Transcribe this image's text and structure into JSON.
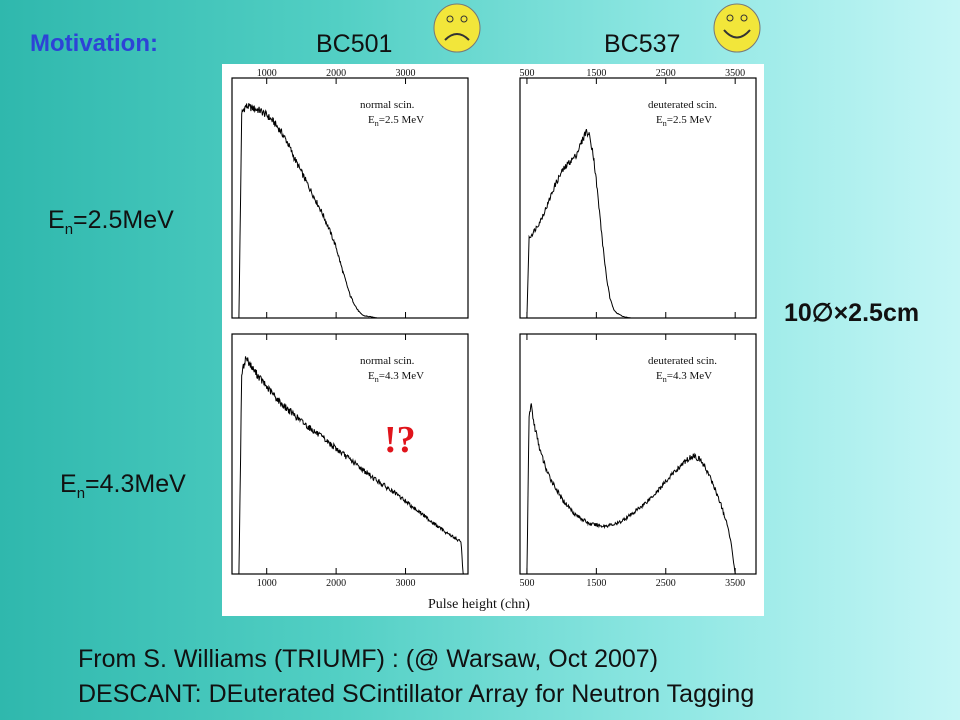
{
  "slide": {
    "title": "Motivation:",
    "columns": [
      "BC501",
      "BC537"
    ],
    "rows": [
      {
        "E": "E",
        "sub": "n",
        "rest": "=2.5MeV"
      },
      {
        "E": "E",
        "sub": "n",
        "rest": "=4.3MeV"
      }
    ],
    "dimensions": "10∅×2.5cm",
    "annotation": "!?",
    "credit_line1": "From S. Williams (TRIUMF) : (@ Warsaw, Oct 2007)",
    "credit_line2": "DESCANT: DEuterated SCintillator Array for Neutron Tagging",
    "icons": [
      "sad-face-icon",
      "happy-face-icon"
    ],
    "colors": {
      "title": "#2d43d6",
      "annotation": "#e0141b",
      "face": "#f2e63a"
    }
  },
  "chart_data": [
    {
      "type": "line",
      "legend": [
        "normal scin.",
        "E",
        "n",
        "=2.5 MeV"
      ],
      "xlabel": "Pulse height (chn)",
      "xlim": [
        500,
        3900
      ],
      "x_ticks": [
        1000,
        2000,
        3000
      ],
      "series": [
        {
          "x": [
            600,
            640,
            700,
            800,
            900,
            1000,
            1100,
            1200,
            1300,
            1400,
            1500,
            1600,
            1700,
            1800,
            1900,
            2000,
            2100,
            2200,
            2300,
            2350,
            2400,
            2500,
            2600,
            3000,
            3900
          ],
          "y": [
            0,
            0.9,
            0.93,
            0.92,
            0.91,
            0.89,
            0.86,
            0.82,
            0.77,
            0.7,
            0.64,
            0.58,
            0.52,
            0.46,
            0.39,
            0.31,
            0.2,
            0.1,
            0.04,
            0.02,
            0.01,
            0.005,
            0,
            0,
            0
          ]
        }
      ]
    },
    {
      "type": "line",
      "legend": [
        "deuterated scin.",
        "E",
        "n",
        "=2.5 MeV"
      ],
      "xlim": [
        400,
        3800
      ],
      "x_ticks": [
        500,
        1500,
        2500,
        3500
      ],
      "series": [
        {
          "x": [
            500,
            530,
            600,
            700,
            800,
            900,
            1000,
            1100,
            1200,
            1300,
            1350,
            1400,
            1450,
            1500,
            1550,
            1600,
            1650,
            1700,
            1750,
            1800,
            1900,
            2000,
            3800
          ],
          "y": [
            0,
            0.35,
            0.38,
            0.43,
            0.5,
            0.58,
            0.64,
            0.68,
            0.71,
            0.78,
            0.82,
            0.8,
            0.73,
            0.6,
            0.45,
            0.3,
            0.17,
            0.08,
            0.04,
            0.02,
            0.005,
            0,
            0
          ]
        }
      ]
    },
    {
      "type": "line",
      "legend": [
        "normal scin.",
        "E",
        "n",
        "=4.3 MeV"
      ],
      "xlim": [
        500,
        3900
      ],
      "x_ticks": [
        1000,
        2000,
        3000
      ],
      "series": [
        {
          "x": [
            600,
            640,
            700,
            800,
            1000,
            1200,
            1500,
            2000,
            2500,
            3000,
            3500,
            3800,
            3830,
            3900
          ],
          "y": [
            0,
            0.88,
            0.95,
            0.9,
            0.82,
            0.75,
            0.67,
            0.55,
            0.43,
            0.32,
            0.2,
            0.14,
            0,
            0
          ]
        }
      ]
    },
    {
      "type": "line",
      "legend": [
        "deuterated scin.",
        "E",
        "n",
        "=4.3 MeV"
      ],
      "xlim": [
        400,
        3800
      ],
      "x_ticks": [
        500,
        1500,
        2500,
        3500
      ],
      "series": [
        {
          "x": [
            500,
            530,
            560,
            600,
            700,
            800,
            1000,
            1200,
            1400,
            1600,
            1800,
            2000,
            2200,
            2400,
            2600,
            2800,
            2900,
            3000,
            3100,
            3200,
            3300,
            3400,
            3450,
            3500,
            3800
          ],
          "y": [
            0,
            0.68,
            0.75,
            0.66,
            0.53,
            0.44,
            0.33,
            0.26,
            0.22,
            0.21,
            0.22,
            0.26,
            0.31,
            0.37,
            0.44,
            0.5,
            0.52,
            0.5,
            0.45,
            0.38,
            0.3,
            0.2,
            0.12,
            0,
            0
          ]
        }
      ]
    }
  ]
}
